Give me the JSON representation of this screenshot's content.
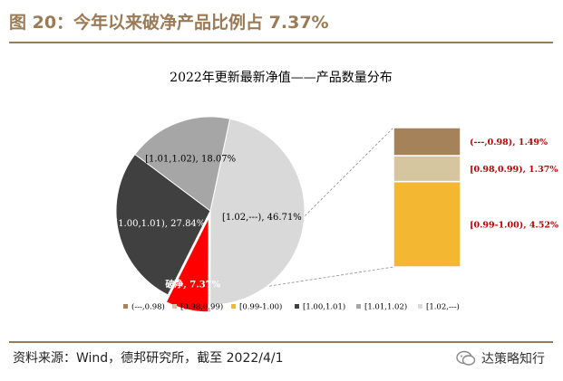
{
  "figure": {
    "title": "图 20：今年以来破净产品比例占 7.37%",
    "source": "资料来源：Wind，德邦研究所，截至 2022/4/1",
    "watermark": "达策略知行",
    "accent": "#9B7A56"
  },
  "chart_data": {
    "type": "pie",
    "title": "2022年更新最新净值——产品数量分布",
    "slices": [
      {
        "label": "[1.02,---)",
        "value": 46.71,
        "value_label": "46.71%",
        "color": "#D9D9D9",
        "data_label": "[1.02,---), 46.71%",
        "label_color": "#000000"
      },
      {
        "label": "破净",
        "value": 7.37,
        "value_label": "7.37%",
        "color": "#FF0000",
        "data_label": "破净, 7.37%",
        "label_color": "#FFFFFF"
      },
      {
        "label": "[1.00,1.01)",
        "value": 27.84,
        "value_label": "27.84%",
        "color": "#404040",
        "data_label": "[1.00,1.01), 27.84%",
        "label_color": "#FFFFFF"
      },
      {
        "label": "[1.01,1.02)",
        "value": 18.07,
        "value_label": "18.07%",
        "color": "#A6A6A6",
        "data_label": "[1.01,1.02), 18.07%",
        "label_color": "#000000"
      }
    ],
    "breakdown": {
      "parent": "破净",
      "segments": [
        {
          "label": "(---,0.98)",
          "value": 1.49,
          "color": "#A6825A",
          "data_label": "(---,0.98), 1.49%"
        },
        {
          "label": "[0.98,0.99)",
          "value": 1.37,
          "color": "#D6C6A0",
          "data_label": "[0.98,0.99), 1.37%"
        },
        {
          "label": "[0.99-1.00)",
          "value": 4.52,
          "color": "#F4B731",
          "data_label": "[0.99-1.00), 4.52%"
        }
      ],
      "label_color": "#C00000"
    },
    "legend": [
      {
        "label": "(---,0.98)",
        "color": "#A6825A"
      },
      {
        "label": "[0.98,0.99)",
        "color": "#D6C6A0"
      },
      {
        "label": "[0.99-1.00)",
        "color": "#F4B731"
      },
      {
        "label": "[1.00,1.01)",
        "color": "#404040"
      },
      {
        "label": "[1.01,1.02)",
        "color": "#A6A6A6"
      },
      {
        "label": "[1.02,---)",
        "color": "#D9D9D9"
      }
    ],
    "legend_position": "bottom"
  }
}
